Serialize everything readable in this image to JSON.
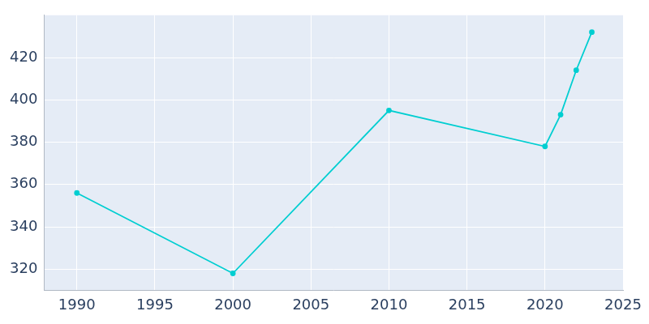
{
  "chart_data": {
    "type": "line",
    "x": [
      1990,
      2000,
      2010,
      2020,
      2021,
      2022,
      2023
    ],
    "values": [
      356,
      318,
      395,
      378,
      393,
      414,
      432
    ],
    "color": "#00ced1",
    "marker": "circle",
    "xlim": [
      1987.9,
      2025
    ],
    "xticks": [
      1990,
      1995,
      2000,
      2005,
      2010,
      2015,
      2020,
      2025
    ],
    "ylim": [
      310,
      440
    ],
    "yticks": [
      320,
      340,
      360,
      380,
      400,
      420
    ],
    "grid": true
  }
}
